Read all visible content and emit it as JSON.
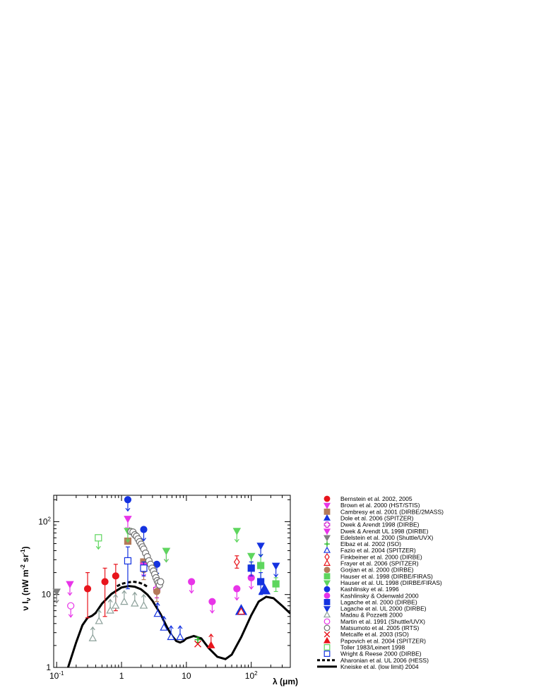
{
  "chart_data": {
    "type": "scatter",
    "xscale": "log",
    "yscale": "log",
    "xlim": [
      0.09,
      400
    ],
    "ylim": [
      1,
      230
    ],
    "xlabel": "λ (μm)",
    "ylabel": "ν I_ν (nW m^-2 sr^-1)",
    "legend_position": "right",
    "x_ticks": [
      {
        "value": 0.1,
        "base": "10",
        "exp": "-1"
      },
      {
        "value": 1,
        "base": "1",
        "exp": ""
      },
      {
        "value": 10,
        "base": "10",
        "exp": ""
      },
      {
        "value": 100,
        "base": "10",
        "exp": "2"
      }
    ],
    "y_ticks": [
      {
        "value": 1,
        "base": "1",
        "exp": ""
      },
      {
        "value": 10,
        "base": "10",
        "exp": ""
      },
      {
        "value": 100,
        "base": "10",
        "exp": "2"
      }
    ],
    "series": [
      {
        "name": "Bernstein et al. 2002, 2005",
        "marker": "circle",
        "fill": true,
        "color": "#e8141c",
        "points": [
          {
            "x": 0.3,
            "y": 12,
            "lo": 4.8,
            "hi": 20
          },
          {
            "x": 0.555,
            "y": 15,
            "lo": 5,
            "hi": 23
          },
          {
            "x": 0.814,
            "y": 18,
            "lo": 6,
            "hi": 26
          }
        ]
      },
      {
        "name": "Brown et al. 2000 (HST/STIS)",
        "marker": "tri-down",
        "fill": true,
        "color": "#e834e8",
        "points": [
          {
            "x": 0.16,
            "y": 14,
            "arrow": "down"
          }
        ]
      },
      {
        "name": "Cambresy et al. 2001 (DIRBE/2MASS)",
        "marker": "square",
        "fill": true,
        "color": "#b57a5a",
        "points": [
          {
            "x": 1.25,
            "y": 54
          },
          {
            "x": 2.2,
            "y": 28
          }
        ]
      },
      {
        "name": "Dole et al. 2006 (SPITZER)",
        "marker": "tri-up",
        "fill": true,
        "color": "#1432e0",
        "size": 1.6,
        "points": [
          {
            "x": 70,
            "y": 6
          },
          {
            "x": 160,
            "y": 11.5
          }
        ]
      },
      {
        "name": "Dwek & Arendt 1998 (DIRBE)",
        "marker": "cross-open",
        "fill": false,
        "color": "#d018d0",
        "points": [
          {
            "x": 3.5,
            "y": 12,
            "lo": 9,
            "hi": 15
          }
        ]
      },
      {
        "name": "Dwek & Arendt UL 1998 (DIRBE)",
        "marker": "tri-down",
        "fill": true,
        "color": "#e834e8",
        "points": [
          {
            "x": 1.25,
            "y": 110,
            "arrow": "down"
          },
          {
            "x": 2.2,
            "y": 25,
            "arrow": "down"
          },
          {
            "x": 4.9,
            "y": 40,
            "arrow": "down"
          }
        ]
      },
      {
        "name": "Edelstein et al. 2000 (Shuttle/UVX)",
        "marker": "tri-down",
        "fill": true,
        "color": "#808080",
        "points": [
          {
            "x": 0.1,
            "y": 11,
            "arrow": "down"
          }
        ]
      },
      {
        "name": "Elbaz et al. 2002 (ISO)",
        "marker": "plus",
        "fill": false,
        "color": "#22b522",
        "points": [
          {
            "x": 15,
            "y": 2.4,
            "lo": 2.2,
            "hi": 2.6
          }
        ]
      },
      {
        "name": "Fazio et al. 2004 (SPITZER)",
        "marker": "tri-up",
        "fill": false,
        "color": "#1432e0",
        "points": [
          {
            "x": 3.6,
            "y": 5.4,
            "arrow": "up"
          },
          {
            "x": 4.5,
            "y": 3.5,
            "arrow": "up"
          },
          {
            "x": 5.8,
            "y": 2.6,
            "arrow": "up"
          },
          {
            "x": 8,
            "y": 2.6,
            "arrow": "up"
          }
        ]
      },
      {
        "name": "Finkbeiner et al. 2000 (DIRBE)",
        "marker": "diamond",
        "fill": false,
        "color": "#e8141c",
        "points": [
          {
            "x": 60,
            "y": 28,
            "lo": 23,
            "hi": 34
          }
        ]
      },
      {
        "name": "Frayer et al. 2006 (SPITZER)",
        "marker": "tri-up",
        "fill": false,
        "color": "#e8141c",
        "points": [
          {
            "x": 70,
            "y": 5.8
          }
        ]
      },
      {
        "name": "Gorjian et al. 2000 (DIRBE)",
        "marker": "circle",
        "fill": true,
        "color": "#b57a5a",
        "points": [
          {
            "x": 2.2,
            "y": 22,
            "lo": 16,
            "hi": 28
          },
          {
            "x": 3.5,
            "y": 11,
            "lo": 8,
            "hi": 14
          }
        ]
      },
      {
        "name": "Hauser et al. 1998 (DIRBE/FIRAS)",
        "marker": "square",
        "fill": true,
        "color": "#5ed65e",
        "points": [
          {
            "x": 140,
            "y": 25,
            "lo": 15,
            "hi": 35
          },
          {
            "x": 240,
            "y": 14,
            "lo": 11,
            "hi": 17
          }
        ]
      },
      {
        "name": "Hauser et al. UL 1998 (DIRBE/FIRAS)",
        "marker": "tri-down",
        "fill": true,
        "color": "#5ed65e",
        "points": [
          {
            "x": 1.25,
            "y": 75,
            "arrow": "down"
          },
          {
            "x": 4.9,
            "y": 40,
            "arrow": "down"
          },
          {
            "x": 60,
            "y": 75,
            "arrow": "down"
          },
          {
            "x": 100,
            "y": 34,
            "arrow": "down"
          }
        ]
      },
      {
        "name": "Kashlinsky et al. 1996",
        "marker": "circle",
        "fill": true,
        "color": "#1432e0",
        "points": [
          {
            "x": 1.25,
            "y": 200,
            "arrow": "down"
          },
          {
            "x": 2.2,
            "y": 78,
            "arrow": "down"
          },
          {
            "x": 3.5,
            "y": 26,
            "arrow": "down"
          }
        ]
      },
      {
        "name": "Kashlinsky & Odenwald 2000",
        "marker": "circle",
        "fill": true,
        "color": "#e834e8",
        "points": [
          {
            "x": 12,
            "y": 15,
            "arrow": "down"
          },
          {
            "x": 25,
            "y": 8,
            "arrow": "down"
          },
          {
            "x": 60,
            "y": 12,
            "arrow": "down"
          },
          {
            "x": 100,
            "y": 17,
            "arrow": "down"
          }
        ]
      },
      {
        "name": "Lagache et al. 2000 (DIRBE)",
        "marker": "square",
        "fill": true,
        "color": "#1432e0",
        "points": [
          {
            "x": 100,
            "y": 23,
            "lo": 18,
            "hi": 28
          },
          {
            "x": 140,
            "y": 15,
            "lo": 10,
            "hi": 20
          }
        ]
      },
      {
        "name": "Lagache et al. UL 2000 (DIRBE)",
        "marker": "tri-down",
        "fill": true,
        "color": "#1432e0",
        "points": [
          {
            "x": 140,
            "y": 47,
            "arrow": "down"
          },
          {
            "x": 240,
            "y": 25,
            "arrow": "down"
          }
        ]
      },
      {
        "name": "Madau & Pozzetti 2000",
        "marker": "tri-up",
        "fill": false,
        "color": "#8ca09a",
        "points": [
          {
            "x": 0.36,
            "y": 2.5,
            "arrow": "up"
          },
          {
            "x": 0.45,
            "y": 4.3,
            "arrow": "up"
          },
          {
            "x": 0.67,
            "y": 6.0,
            "arrow": "up"
          },
          {
            "x": 0.81,
            "y": 7.0,
            "arrow": "up"
          },
          {
            "x": 1.1,
            "y": 7.9,
            "arrow": "up"
          },
          {
            "x": 1.6,
            "y": 7.5,
            "arrow": "up"
          },
          {
            "x": 2.2,
            "y": 7.0,
            "arrow": "up"
          }
        ]
      },
      {
        "name": "Martin et al. 1991 (Shuttle/UVX)",
        "marker": "circle",
        "fill": false,
        "color": "#e834e8",
        "points": [
          {
            "x": 0.165,
            "y": 7,
            "arrow": "down"
          }
        ]
      },
      {
        "name": "Matsumoto et al. 2005 (IRTS)",
        "marker": "circle",
        "fill": false,
        "color": "#707070",
        "points": [
          {
            "x": 1.4,
            "y": 73
          },
          {
            "x": 1.5,
            "y": 72
          },
          {
            "x": 1.6,
            "y": 66
          },
          {
            "x": 1.7,
            "y": 63
          },
          {
            "x": 1.8,
            "y": 58
          },
          {
            "x": 1.9,
            "y": 53
          },
          {
            "x": 2.0,
            "y": 49
          },
          {
            "x": 2.1,
            "y": 45
          },
          {
            "x": 2.2,
            "y": 42
          },
          {
            "x": 2.35,
            "y": 37
          },
          {
            "x": 2.5,
            "y": 33
          },
          {
            "x": 2.65,
            "y": 29
          },
          {
            "x": 2.8,
            "y": 26
          },
          {
            "x": 2.95,
            "y": 23
          },
          {
            "x": 3.1,
            "y": 21
          },
          {
            "x": 3.25,
            "y": 19
          },
          {
            "x": 3.4,
            "y": 17
          },
          {
            "x": 3.55,
            "y": 15.5
          },
          {
            "x": 3.7,
            "y": 14.5
          },
          {
            "x": 3.85,
            "y": 13.5
          },
          {
            "x": 4.0,
            "y": 15
          }
        ]
      },
      {
        "name": "Metcalfe et al. 2003 (ISO)",
        "marker": "x",
        "fill": false,
        "color": "#e8141c",
        "points": [
          {
            "x": 15,
            "y": 2.1
          }
        ]
      },
      {
        "name": "Papovich et al. 2004 (SPITZER)",
        "marker": "tri-up",
        "fill": true,
        "color": "#e8141c",
        "points": [
          {
            "x": 24,
            "y": 2.0,
            "arrow": "up"
          }
        ]
      },
      {
        "name": "Toller 1983/Leinert 1998",
        "marker": "square",
        "fill": false,
        "color": "#5ed65e",
        "points": [
          {
            "x": 0.44,
            "y": 60,
            "arrow": "down"
          }
        ]
      },
      {
        "name": "Wright & Reese 2000 (DIRBE)",
        "marker": "square",
        "fill": false,
        "color": "#1432e0",
        "points": [
          {
            "x": 1.25,
            "y": 29,
            "lo": 12,
            "hi": 45
          },
          {
            "x": 2.2,
            "y": 23,
            "lo": 18,
            "hi": 28
          }
        ]
      },
      {
        "name": "Aharonian et al. UL 2006 (HESS)",
        "marker": "dashed-line",
        "color": "#000000",
        "points": [
          {
            "x": 0.85,
            "y": 13
          },
          {
            "x": 1.0,
            "y": 14
          },
          {
            "x": 1.2,
            "y": 14.6
          },
          {
            "x": 1.5,
            "y": 15
          },
          {
            "x": 1.8,
            "y": 14.7
          },
          {
            "x": 2.2,
            "y": 13.8
          },
          {
            "x": 2.6,
            "y": 12.5
          }
        ]
      },
      {
        "name": "Kneiske et al. (low limit) 2004",
        "marker": "solid-line",
        "color": "#000000",
        "points": [
          {
            "x": 0.12,
            "y": 0.78
          },
          {
            "x": 0.15,
            "y": 1.0
          },
          {
            "x": 0.2,
            "y": 2.2
          },
          {
            "x": 0.25,
            "y": 3.8
          },
          {
            "x": 0.3,
            "y": 4.8
          },
          {
            "x": 0.35,
            "y": 5.1
          },
          {
            "x": 0.4,
            "y": 5.6
          },
          {
            "x": 0.5,
            "y": 7.5
          },
          {
            "x": 0.7,
            "y": 10.2
          },
          {
            "x": 1.0,
            "y": 12.5
          },
          {
            "x": 1.3,
            "y": 13.1
          },
          {
            "x": 1.6,
            "y": 12.8
          },
          {
            "x": 2.0,
            "y": 11.8
          },
          {
            "x": 2.5,
            "y": 10.0
          },
          {
            "x": 3.0,
            "y": 8.2
          },
          {
            "x": 4.0,
            "y": 5.4
          },
          {
            "x": 5.0,
            "y": 3.6
          },
          {
            "x": 6.0,
            "y": 2.7
          },
          {
            "x": 7.0,
            "y": 2.3
          },
          {
            "x": 8.0,
            "y": 2.2
          },
          {
            "x": 9.0,
            "y": 2.3
          },
          {
            "x": 10,
            "y": 2.5
          },
          {
            "x": 13,
            "y": 2.7
          },
          {
            "x": 17,
            "y": 2.5
          },
          {
            "x": 22,
            "y": 1.85
          },
          {
            "x": 30,
            "y": 1.4
          },
          {
            "x": 40,
            "y": 1.3
          },
          {
            "x": 50,
            "y": 1.5
          },
          {
            "x": 70,
            "y": 2.6
          },
          {
            "x": 100,
            "y": 5.2
          },
          {
            "x": 130,
            "y": 8.0
          },
          {
            "x": 170,
            "y": 9.3
          },
          {
            "x": 220,
            "y": 8.9
          },
          {
            "x": 300,
            "y": 7.0
          },
          {
            "x": 400,
            "y": 5.5
          }
        ]
      }
    ]
  }
}
